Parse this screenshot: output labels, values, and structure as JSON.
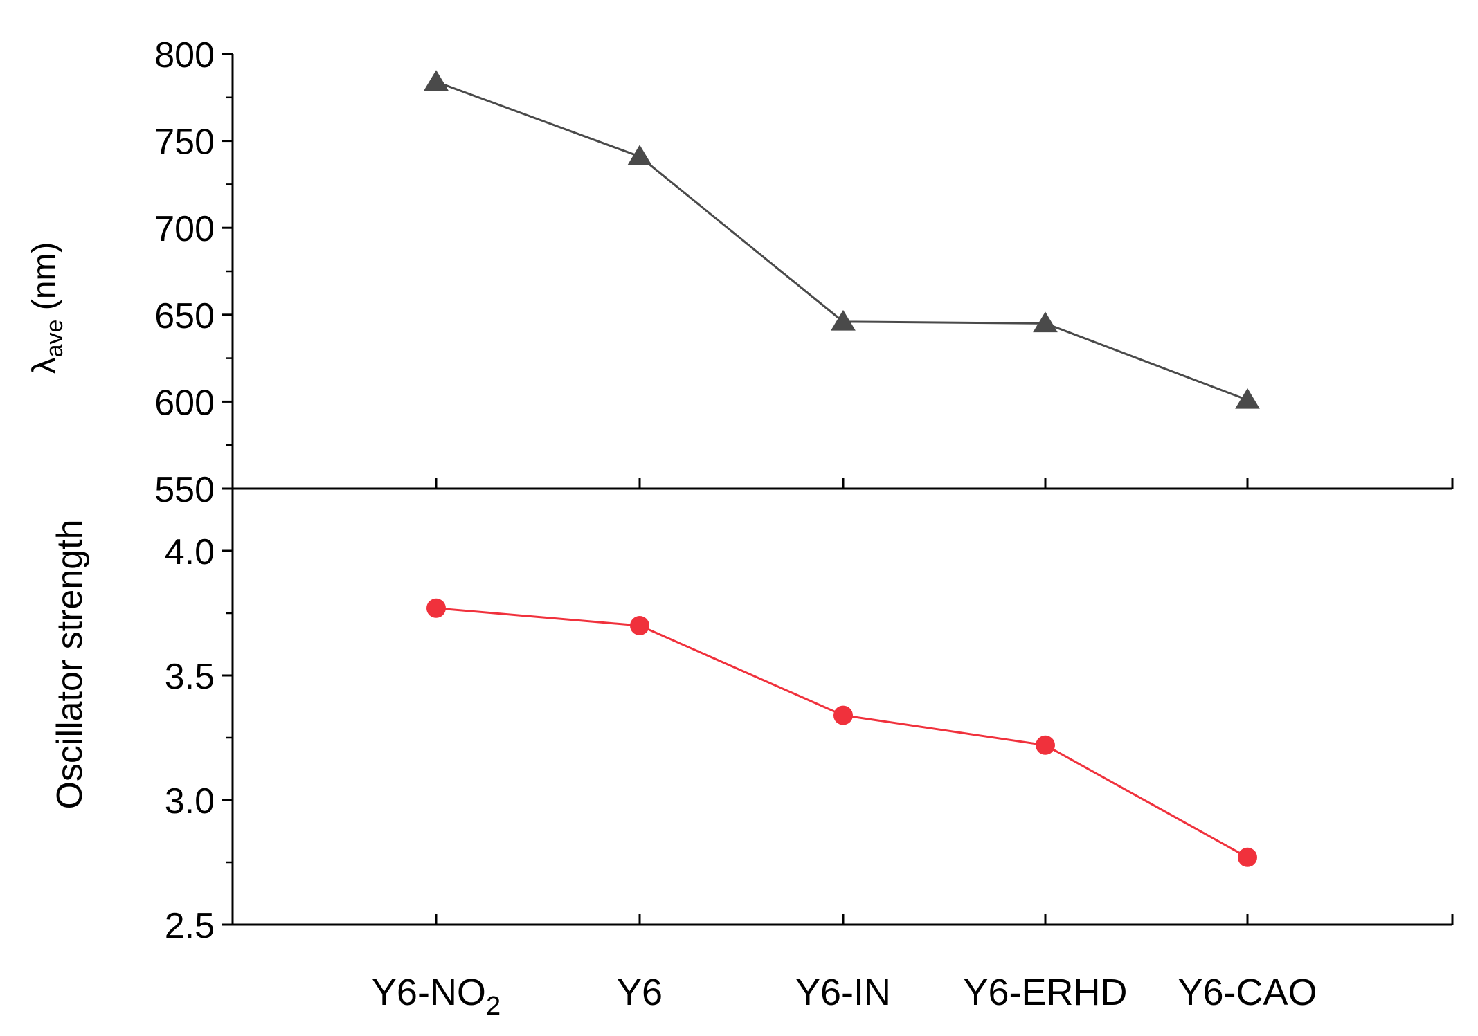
{
  "chart_data": [
    {
      "type": "line",
      "categories": [
        "Y6-NO2",
        "Y6",
        "Y6-IN",
        "Y6-ERHD",
        "Y6-CAO"
      ],
      "series": [
        {
          "values": [
            784,
            741,
            646,
            645,
            601
          ],
          "color": "#4a4a4a",
          "marker": "triangle"
        }
      ],
      "ylabel_main": "λ",
      "ylabel_sub": "ave",
      "ylabel_unit": " (nm)",
      "ylim": [
        550,
        800
      ],
      "yticks": [
        "550",
        "600",
        "650",
        "700",
        "750",
        "800"
      ],
      "grid": false
    },
    {
      "type": "line",
      "categories": [
        "Y6-NO2",
        "Y6",
        "Y6-IN",
        "Y6-ERHD",
        "Y6-CAO"
      ],
      "series": [
        {
          "values": [
            3.77,
            3.7,
            3.34,
            3.22,
            2.77
          ],
          "color": "#f0313c",
          "marker": "circle"
        }
      ],
      "ylabel": "Oscillator strength",
      "ylim": [
        2.5,
        4.0
      ],
      "yticks": [
        "2.5",
        "3.0",
        "3.5",
        "4.0"
      ],
      "grid": false
    }
  ],
  "xticklabels": [
    {
      "main": "Y6-NO",
      "sub": "2"
    },
    {
      "main": "Y6",
      "sub": ""
    },
    {
      "main": "Y6-IN",
      "sub": ""
    },
    {
      "main": "Y6-ERHD",
      "sub": ""
    },
    {
      "main": "Y6-CAO",
      "sub": ""
    }
  ]
}
